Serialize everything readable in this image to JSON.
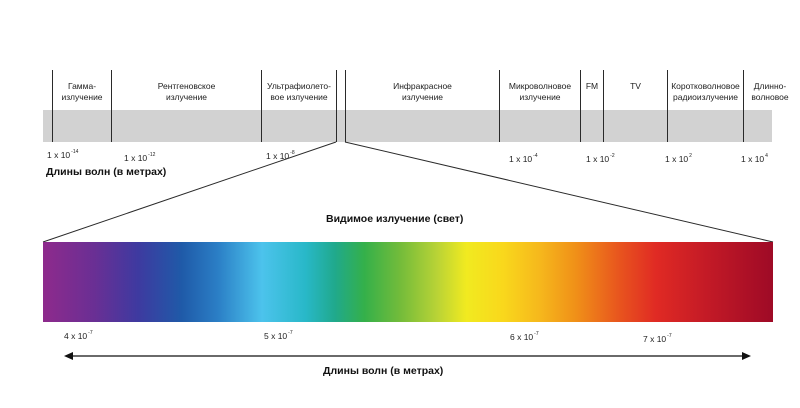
{
  "bands": [
    {
      "label": "Гамма-\nизлучение"
    },
    {
      "label": "Рентгеновское\nизлучение"
    },
    {
      "label": "Ультрафиолето-\nвое излучение"
    },
    {
      "label": "Инфракрасное\nизлучение"
    },
    {
      "label": "Микроволновое\nизлучение"
    },
    {
      "label": "FM"
    },
    {
      "label": "TV"
    },
    {
      "label": "Коротковолновое\nрадиоизлучение"
    },
    {
      "label": "Длинно-\nволновое"
    }
  ],
  "top_ticks": [
    {
      "base": "1 x 10",
      "exp": "-14"
    },
    {
      "base": "1 x 10",
      "exp": "-12"
    },
    {
      "base": "1 x 10",
      "exp": "-8"
    },
    {
      "base": "1 x 10",
      "exp": "-4"
    },
    {
      "base": "1 x 10",
      "exp": "-2"
    },
    {
      "base": "1 x 10",
      "exp": "2"
    },
    {
      "base": "1 x 10",
      "exp": "4"
    }
  ],
  "top_axis_title": "Длины волн (в метрах)",
  "visible_title": "Видимое излучение (свет)",
  "bottom_ticks": [
    {
      "base": "4 x 10",
      "exp": "-7"
    },
    {
      "base": "5 x 10",
      "exp": "-7"
    },
    {
      "base": "6 x 10",
      "exp": "-7"
    },
    {
      "base": "7 x 10",
      "exp": "-7"
    }
  ],
  "bottom_axis_title": "Длины волн (в метрах)",
  "colors": {
    "band": "#d2d2d2",
    "lines": "#2a2a2a"
  }
}
